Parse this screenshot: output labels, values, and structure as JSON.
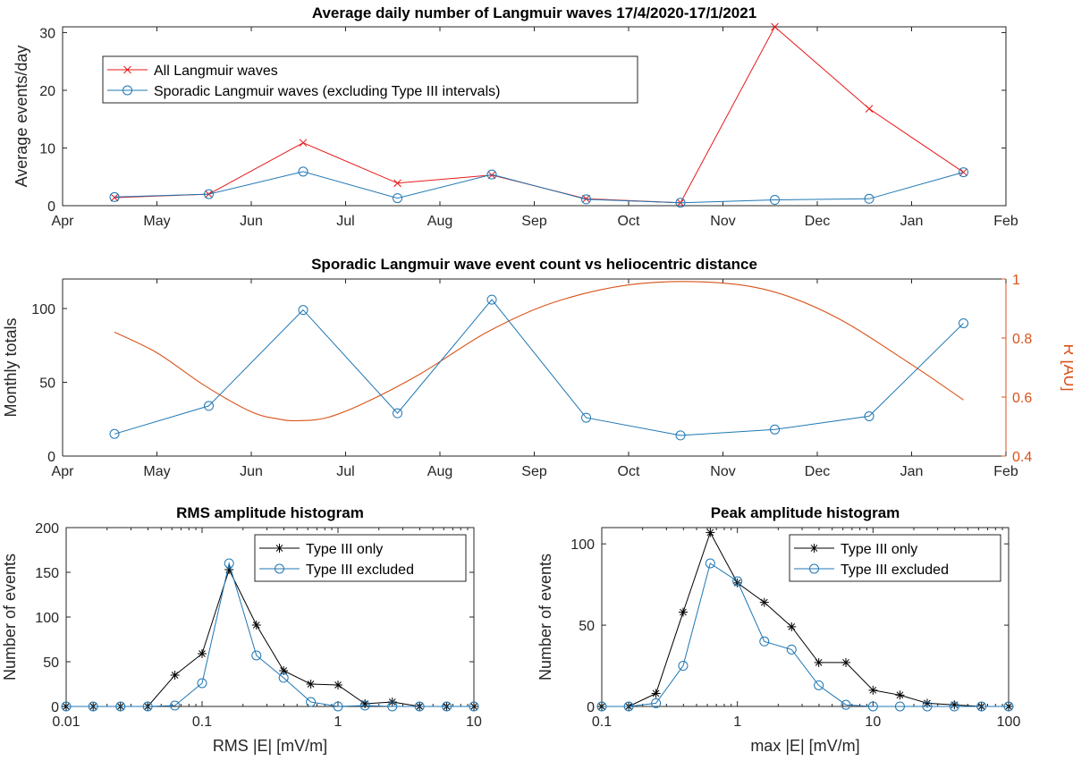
{
  "chart_data": [
    {
      "type": "line",
      "title": "Average daily number of Langmuir waves 17/4/2020-17/1/2021",
      "xlabel": "",
      "ylabel": "Average events/day",
      "x_tick_labels": [
        "Apr",
        "May",
        "Jun",
        "Jul",
        "Aug",
        "Sep",
        "Oct",
        "Nov",
        "Dec",
        "Jan",
        "Feb"
      ],
      "y_ticks": [
        "0",
        "10",
        "20",
        "30"
      ],
      "ylim": [
        0,
        31
      ],
      "legend_position": "top-left",
      "x": [
        0.55,
        1.55,
        2.55,
        3.55,
        4.55,
        5.55,
        6.55,
        7.55,
        8.55,
        9.55
      ],
      "series": [
        {
          "name": "All Langmuir waves",
          "color": "#e8191a",
          "marker": "x",
          "values": [
            1.4,
            2.0,
            10.9,
            3.9,
            5.3,
            1.2,
            0.5,
            31.0,
            16.8,
            5.8
          ]
        },
        {
          "name": "Sporadic Langmuir waves (excluding Type III intervals)",
          "color": "#1f77b4",
          "marker": "o",
          "values": [
            1.5,
            2.0,
            5.9,
            1.3,
            5.4,
            1.1,
            0.5,
            1.0,
            1.2,
            5.8
          ]
        }
      ]
    },
    {
      "type": "line",
      "title": "Sporadic Langmuir wave event count vs heliocentric distance",
      "xlabel": "",
      "ylabel": "Monthly totals",
      "ylabel_right": "R [AU]",
      "x_tick_labels": [
        "Apr",
        "May",
        "Jun",
        "Jul",
        "Aug",
        "Sep",
        "Oct",
        "Nov",
        "Dec",
        "Jan",
        "Feb"
      ],
      "y_ticks": [
        "0",
        "50",
        "100"
      ],
      "y_right_ticks": [
        "0.4",
        "0.6",
        "0.8",
        "1"
      ],
      "ylim": [
        0,
        120
      ],
      "ylim_right": [
        0.4,
        1.0
      ],
      "x": [
        0.55,
        1.55,
        2.55,
        3.55,
        4.55,
        5.55,
        6.55,
        7.55,
        8.55,
        9.55
      ],
      "series": [
        {
          "name": "",
          "color": "#1f77b4",
          "marker": "o",
          "values": [
            15,
            34,
            99,
            29,
            106,
            26,
            14,
            18,
            27,
            90
          ]
        }
      ],
      "right_series": {
        "color": "#d95319",
        "x": [
          0.55,
          1.0,
          1.5,
          2.0,
          2.3,
          2.5,
          2.8,
          3.2,
          3.8,
          4.5,
          5.2,
          6.0,
          6.8,
          7.5,
          8.2,
          9.0,
          9.55
        ],
        "values": [
          0.82,
          0.75,
          0.64,
          0.55,
          0.525,
          0.52,
          0.53,
          0.58,
          0.68,
          0.82,
          0.92,
          0.98,
          0.99,
          0.96,
          0.87,
          0.71,
          0.59
        ]
      }
    },
    {
      "type": "line",
      "title": "RMS amplitude histogram",
      "xlabel": "RMS |E| [mV/m]",
      "ylabel": "Number of events",
      "x_scale": "log",
      "xlim": [
        0.01,
        10
      ],
      "x_ticks": [
        "0.01",
        "0.1",
        "1",
        "10"
      ],
      "y_ticks": [
        "0",
        "50",
        "100",
        "150",
        "200"
      ],
      "ylim": [
        0,
        200
      ],
      "legend_position": "top-right",
      "x": [
        0.01,
        0.0158,
        0.0251,
        0.0398,
        0.0631,
        0.1,
        0.158,
        0.251,
        0.398,
        0.631,
        1.0,
        1.58,
        2.51,
        3.98,
        6.31,
        10.0
      ],
      "series": [
        {
          "name": "Type III only",
          "color": "#000000",
          "marker": "*",
          "values": [
            0,
            0,
            0,
            0,
            35,
            59,
            153,
            91,
            40,
            25,
            24,
            3,
            5,
            0,
            0,
            0
          ]
        },
        {
          "name": "Type III excluded",
          "color": "#1f77b4",
          "marker": "o",
          "values": [
            0,
            0,
            0,
            0,
            1,
            26,
            160,
            57,
            32,
            5,
            0,
            1,
            0,
            0,
            0,
            0
          ]
        }
      ]
    },
    {
      "type": "line",
      "title": "Peak amplitude histogram",
      "xlabel": "max |E| [mV/m]",
      "ylabel": "Number of events",
      "x_scale": "log",
      "xlim": [
        0.1,
        100
      ],
      "x_ticks": [
        "0.1",
        "1",
        "10",
        "100"
      ],
      "y_ticks": [
        "0",
        "50",
        "100"
      ],
      "ylim": [
        0,
        110
      ],
      "legend_position": "top-right",
      "x": [
        0.1,
        0.158,
        0.251,
        0.398,
        0.631,
        1.0,
        1.58,
        2.51,
        3.98,
        6.31,
        10.0,
        15.8,
        25.1,
        39.8,
        63.1,
        100.0
      ],
      "series": [
        {
          "name": "Type III only",
          "color": "#000000",
          "marker": "*",
          "values": [
            0,
            0,
            8,
            58,
            107,
            76,
            64,
            49,
            27,
            27,
            10,
            7,
            2,
            1,
            0,
            0
          ]
        },
        {
          "name": "Type III excluded",
          "color": "#1f77b4",
          "marker": "o",
          "values": [
            0,
            0,
            2,
            25,
            88,
            77,
            40,
            35,
            13,
            1,
            0,
            0,
            0,
            0,
            0,
            0
          ]
        }
      ]
    }
  ]
}
